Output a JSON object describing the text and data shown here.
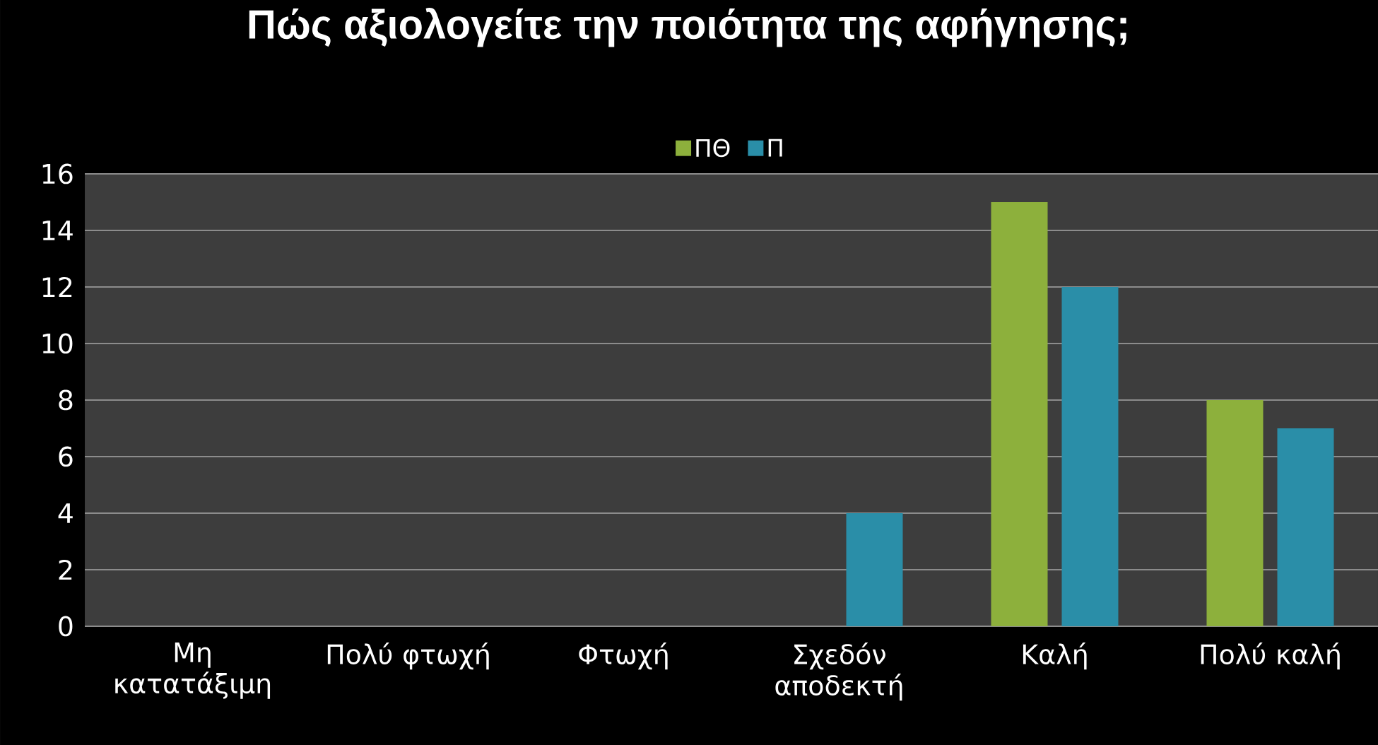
{
  "chart_data": {
    "type": "bar",
    "title": "Πώς αξιολογείτε την ποιότητα της αφήγησης;",
    "categories": [
      "Μη κατατάξιμη",
      "Πολύ φτωχή",
      "Φτωχή",
      "Σχεδόν αποδεκτή",
      "Καλή",
      "Πολύ καλή"
    ],
    "series": [
      {
        "name": "ΠΘ",
        "color": "#8db03c",
        "values": [
          0,
          0,
          0,
          0,
          15,
          8
        ]
      },
      {
        "name": "Π",
        "color": "#2a8ea8",
        "values": [
          0,
          0,
          0,
          4,
          12,
          7
        ]
      }
    ],
    "ylim": [
      0,
      16
    ],
    "yticks": [
      0,
      2,
      4,
      6,
      8,
      10,
      12,
      14,
      16
    ],
    "grid": "y",
    "legend": "top"
  }
}
